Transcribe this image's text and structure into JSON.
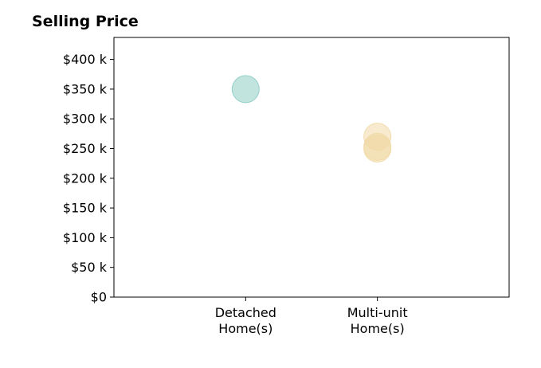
{
  "chart_data": {
    "type": "scatter",
    "title": "Selling Price",
    "xlabel": "",
    "ylabel": "",
    "categories": [
      [
        "Detached",
        "Home(s)"
      ],
      [
        "Multi-unit",
        "Home(s)"
      ]
    ],
    "xlim": [
      -1,
      2
    ],
    "ylim": [
      0,
      437000
    ],
    "yticks": [
      0,
      50000,
      100000,
      150000,
      200000,
      250000,
      300000,
      350000,
      400000
    ],
    "ytick_labels": [
      "$0",
      "$50 k",
      "$100 k",
      "$150 k",
      "$200 k",
      "$250 k",
      "$300 k",
      "$350 k",
      "$400 k"
    ],
    "grid": false,
    "points": [
      {
        "category": 0,
        "value": 350000,
        "color": "#8ecdc4"
      },
      {
        "category": 1,
        "value": 270000,
        "color": "#f1d9a6"
      },
      {
        "category": 1,
        "value": 253000,
        "color": "#f1d9a6"
      },
      {
        "category": 1,
        "value": 250000,
        "color": "#f1d9a6"
      }
    ]
  }
}
